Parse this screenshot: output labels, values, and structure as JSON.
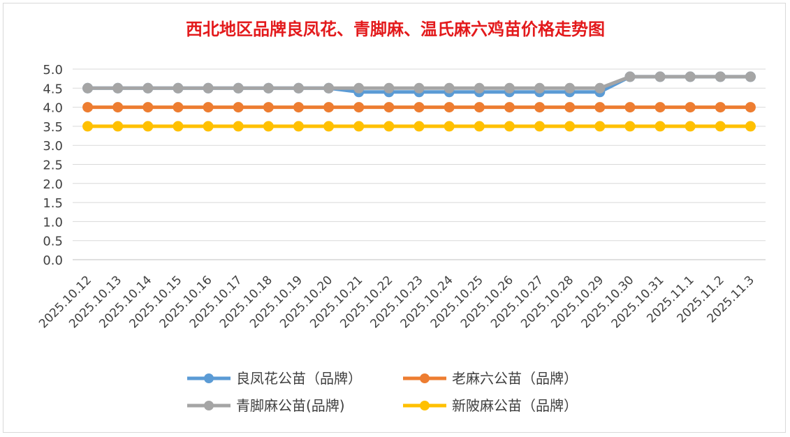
{
  "chart_data": {
    "type": "line",
    "title": "西北地区品牌良凤花、青脚麻、温氏麻六鸡苗价格走势图",
    "xlabel": "",
    "ylabel": "",
    "ylim": [
      0,
      5
    ],
    "yticks": [
      "0.0",
      "0.5",
      "1.0",
      "1.5",
      "2.0",
      "2.5",
      "3.0",
      "3.5",
      "4.0",
      "4.5",
      "5.0"
    ],
    "grid": true,
    "legend_position": "bottom",
    "categories": [
      "2025.10.12",
      "2025.10.13",
      "2025.10.14",
      "2025.10.15",
      "2025.10.16",
      "2025.10.17",
      "2025.10.18",
      "2025.10.19",
      "2025.10.20",
      "2025.10.21",
      "2025.10.22",
      "2025.10.23",
      "2025.10.24",
      "2025.10.25",
      "2025.10.26",
      "2025.10.27",
      "2025.10.28",
      "2025.10.29",
      "2025.10.30",
      "2025.10.31",
      "2025.11.1",
      "2025.11.2",
      "2025.11.3"
    ],
    "series": [
      {
        "name": "良凤花公苗（品牌）",
        "color": "#5b9bd5",
        "values": [
          4.5,
          4.5,
          4.5,
          4.5,
          4.5,
          4.5,
          4.5,
          4.5,
          4.5,
          4.4,
          4.4,
          4.4,
          4.4,
          4.4,
          4.4,
          4.4,
          4.4,
          4.4,
          4.8,
          4.8,
          4.8,
          4.8,
          4.8
        ]
      },
      {
        "name": "老麻六公苗（品牌）",
        "color": "#ed7d31",
        "values": [
          4.0,
          4.0,
          4.0,
          4.0,
          4.0,
          4.0,
          4.0,
          4.0,
          4.0,
          4.0,
          4.0,
          4.0,
          4.0,
          4.0,
          4.0,
          4.0,
          4.0,
          4.0,
          4.0,
          4.0,
          4.0,
          4.0,
          4.0
        ]
      },
      {
        "name": "青脚麻公苗(品牌)",
        "color": "#a5a5a5",
        "values": [
          4.5,
          4.5,
          4.5,
          4.5,
          4.5,
          4.5,
          4.5,
          4.5,
          4.5,
          4.5,
          4.5,
          4.5,
          4.5,
          4.5,
          4.5,
          4.5,
          4.5,
          4.5,
          4.8,
          4.8,
          4.8,
          4.8,
          4.8
        ]
      },
      {
        "name": "新陂麻公苗（品牌）",
        "color": "#ffc000",
        "values": [
          3.5,
          3.5,
          3.5,
          3.5,
          3.5,
          3.5,
          3.5,
          3.5,
          3.5,
          3.5,
          3.5,
          3.5,
          3.5,
          3.5,
          3.5,
          3.5,
          3.5,
          3.5,
          3.5,
          3.5,
          3.5,
          3.5,
          3.5
        ]
      }
    ]
  }
}
